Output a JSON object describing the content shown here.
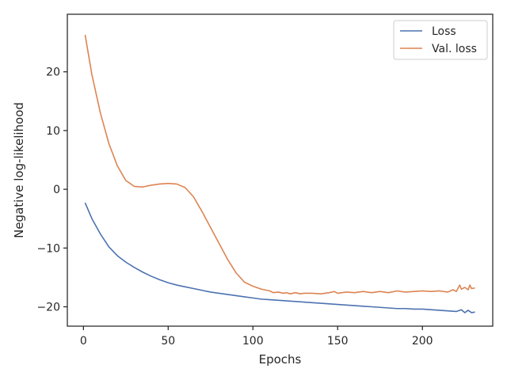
{
  "chart_data": {
    "type": "line",
    "title": "",
    "xlabel": "Epochs",
    "ylabel": "Negative log-likelihood",
    "xlim": [
      -9.5,
      241.5
    ],
    "ylim": [
      -23.3,
      29.8
    ],
    "xticks": [
      0,
      50,
      100,
      150,
      200
    ],
    "yticks": [
      -20,
      -10,
      0,
      10,
      20
    ],
    "xtick_labels": [
      "0",
      "50",
      "100",
      "150",
      "200"
    ],
    "ytick_labels": [
      "−20",
      "−10",
      "0",
      "10",
      "20"
    ],
    "grid": false,
    "legend_position": "top-right",
    "series": [
      {
        "name": "Loss",
        "color": "#4c72b0",
        "x": [
          1,
          5,
          10,
          15,
          20,
          25,
          30,
          35,
          40,
          45,
          50,
          55,
          60,
          65,
          70,
          75,
          80,
          85,
          90,
          95,
          100,
          105,
          110,
          115,
          120,
          125,
          130,
          135,
          140,
          145,
          150,
          155,
          160,
          165,
          170,
          175,
          180,
          185,
          190,
          195,
          200,
          205,
          210,
          215,
          220,
          223,
          225,
          227,
          229,
          231
        ],
        "values": [
          -2.3,
          -5.0,
          -7.6,
          -9.8,
          -11.3,
          -12.4,
          -13.3,
          -14.1,
          -14.8,
          -15.4,
          -15.9,
          -16.3,
          -16.6,
          -16.9,
          -17.2,
          -17.5,
          -17.7,
          -17.9,
          -18.1,
          -18.3,
          -18.5,
          -18.7,
          -18.8,
          -18.9,
          -19.0,
          -19.1,
          -19.2,
          -19.3,
          -19.4,
          -19.5,
          -19.6,
          -19.7,
          -19.8,
          -19.9,
          -20.0,
          -20.1,
          -20.2,
          -20.3,
          -20.3,
          -20.4,
          -20.4,
          -20.5,
          -20.6,
          -20.7,
          -20.8,
          -20.5,
          -21.0,
          -20.6,
          -21.0,
          -20.9
        ]
      },
      {
        "name": "Val. loss",
        "color": "#dd8452",
        "x": [
          1,
          5,
          10,
          15,
          20,
          25,
          30,
          35,
          40,
          45,
          50,
          55,
          60,
          65,
          70,
          75,
          80,
          85,
          90,
          95,
          100,
          105,
          110,
          112,
          115,
          118,
          120,
          122,
          125,
          128,
          130,
          135,
          140,
          145,
          148,
          150,
          155,
          160,
          165,
          170,
          175,
          180,
          185,
          190,
          195,
          200,
          205,
          210,
          215,
          218,
          220,
          222,
          223,
          225,
          227,
          228,
          229,
          231
        ],
        "values": [
          26.3,
          19.5,
          13.0,
          7.8,
          4.0,
          1.5,
          0.5,
          0.4,
          0.7,
          0.9,
          1.0,
          0.9,
          0.3,
          -1.3,
          -3.8,
          -6.5,
          -9.2,
          -11.9,
          -14.2,
          -15.8,
          -16.5,
          -17.0,
          -17.3,
          -17.6,
          -17.5,
          -17.7,
          -17.6,
          -17.8,
          -17.6,
          -17.8,
          -17.7,
          -17.7,
          -17.8,
          -17.6,
          -17.4,
          -17.7,
          -17.5,
          -17.6,
          -17.4,
          -17.6,
          -17.4,
          -17.6,
          -17.3,
          -17.5,
          -17.4,
          -17.3,
          -17.4,
          -17.3,
          -17.5,
          -17.1,
          -17.4,
          -16.3,
          -17.0,
          -16.7,
          -17.1,
          -16.3,
          -16.9,
          -16.8
        ]
      }
    ]
  }
}
